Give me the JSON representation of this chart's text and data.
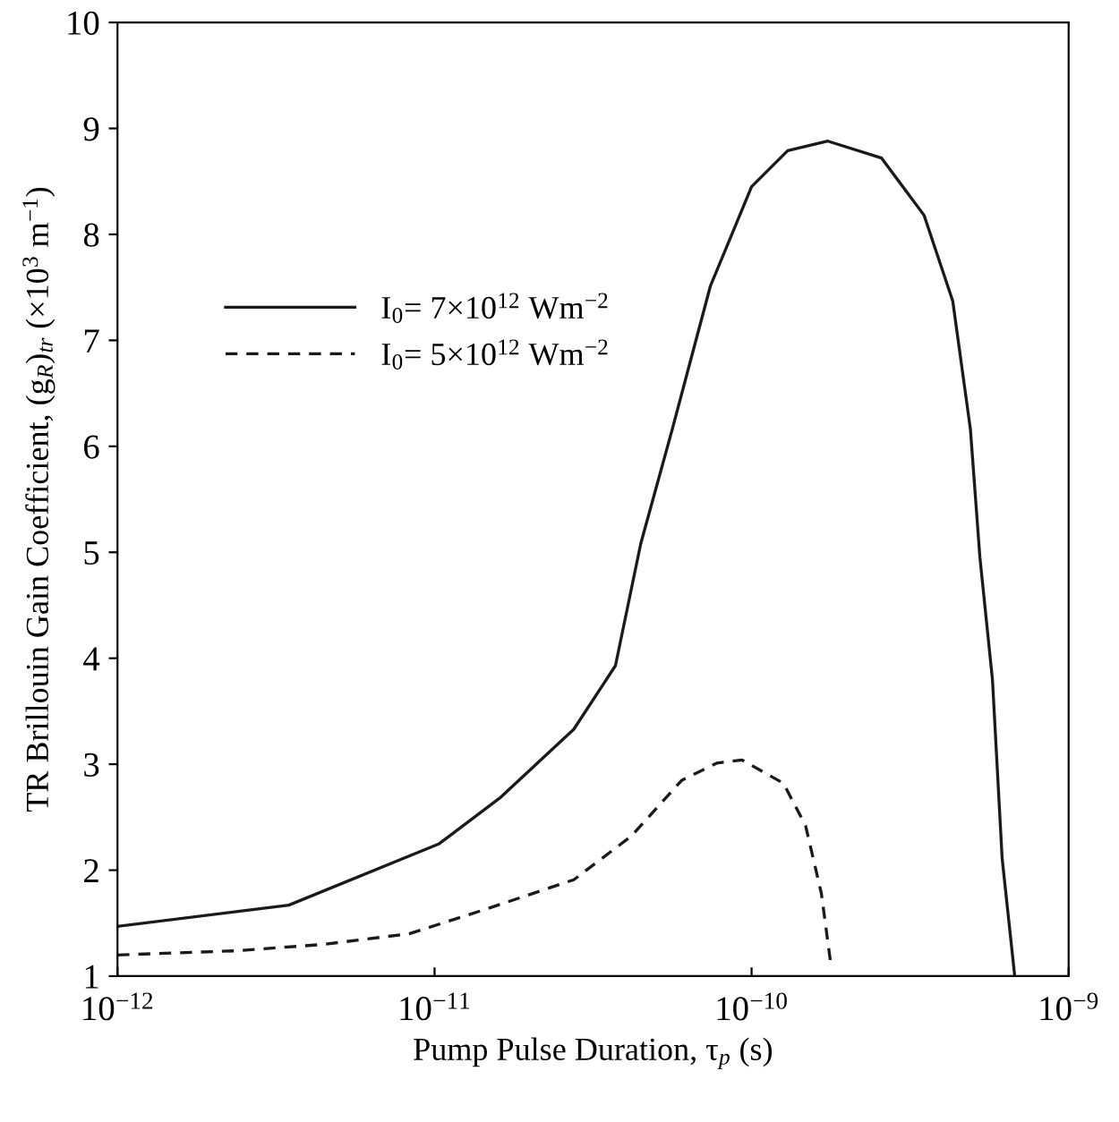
{
  "chart_data": {
    "type": "line",
    "xlabel": "Pump Pulse Duration, τ$_{p}$ (s)",
    "ylabel": "TR Brillouin Gain Coefficient, (g$_{R}$)$_{tr}$ (×10$^{3}$ m$^{−1}$)",
    "log": "x",
    "xlim": [
      1e-12,
      1e-09
    ],
    "xticks": [
      {
        "value": 1e-12,
        "label": "10$^{−12}$"
      },
      {
        "value": 1e-11,
        "label": "10$^{−11}$"
      },
      {
        "value": 1e-10,
        "label": "10$^{−10}$"
      },
      {
        "value": 1e-09,
        "label": "10$^{−9}$"
      }
    ],
    "ylim": [
      1,
      10
    ],
    "yticks": [
      1,
      2,
      3,
      4,
      5,
      6,
      7,
      8,
      9,
      10
    ],
    "grid": false,
    "legend": "top left",
    "marker": "none",
    "series": [
      {
        "name": "I$_{0}$= 7×10$^{12}$ Wm$^{−2}$",
        "color": "#1a1a1a",
        "line_style": "solid",
        "x": [
          1e-12,
          3.47e-12,
          1.035e-11,
          1.62e-11,
          2.75e-11,
          3.72e-11,
          4.47e-11,
          5.62e-11,
          7.41e-11,
          1e-10,
          1.3e-10,
          1.74e-10,
          2.57e-10,
          3.5e-10,
          4.31e-10,
          4.9e-10,
          5.25e-10,
          5.75e-10,
          6.17e-10,
          6.76e-10
        ],
        "values": [
          1.47,
          1.67,
          2.25,
          2.69,
          3.33,
          3.93,
          5.08,
          6.16,
          7.51,
          8.45,
          8.79,
          8.88,
          8.72,
          8.18,
          7.37,
          6.16,
          4.95,
          3.8,
          2.11,
          1.0
        ]
      },
      {
        "name": "I$_{0}$= 5×10$^{12}$ Wm$^{−2}$",
        "color": "#1a1a1a",
        "line_style": "dashed",
        "x": [
          1e-12,
          2.4e-12,
          4.47e-12,
          8.32e-12,
          1.48e-11,
          2.75e-11,
          4.17e-11,
          6.03e-11,
          7.76e-11,
          9.33e-11,
          1.26e-10,
          1.48e-10,
          1.66e-10,
          1.78e-10
        ],
        "values": [
          1.2,
          1.24,
          1.3,
          1.4,
          1.64,
          1.91,
          2.32,
          2.85,
          3.01,
          3.04,
          2.82,
          2.42,
          1.78,
          1.1
        ]
      }
    ]
  }
}
